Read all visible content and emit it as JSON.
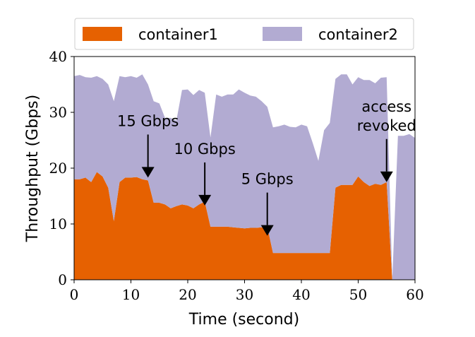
{
  "chart_data": {
    "type": "area",
    "stacked": true,
    "xlabel": "Time (second)",
    "ylabel": "Throughput (Gbps)",
    "xlim": [
      0,
      60
    ],
    "ylim": [
      0,
      40
    ],
    "xticks": [
      0,
      10,
      20,
      30,
      40,
      50,
      60
    ],
    "yticks": [
      0,
      10,
      20,
      30,
      40
    ],
    "grid": false,
    "legend_position": "top",
    "x": [
      0,
      1,
      2,
      3,
      4,
      5,
      6,
      7,
      8,
      9,
      10,
      11,
      12,
      13,
      14,
      15,
      16,
      17,
      18,
      19,
      20,
      21,
      22,
      23,
      24,
      25,
      26,
      27,
      28,
      29,
      30,
      31,
      32,
      33,
      34,
      35,
      36,
      37,
      38,
      39,
      40,
      41,
      42,
      43,
      44,
      45,
      46,
      47,
      48,
      49,
      50,
      51,
      52,
      53,
      54,
      55,
      56,
      57,
      58,
      59,
      60
    ],
    "series": [
      {
        "name": "container1",
        "color": "#e66101",
        "values": [
          18,
          18,
          18.3,
          17.5,
          19.3,
          18.5,
          16.5,
          10.5,
          17.5,
          18.3,
          18.3,
          18.4,
          18,
          17.8,
          13.8,
          13.8,
          13.5,
          12.8,
          13.2,
          13.5,
          13.3,
          12.8,
          13.5,
          14,
          9.5,
          9.5,
          9.5,
          9.5,
          9.4,
          9.3,
          9.2,
          9.3,
          9.3,
          9.4,
          9.5,
          4.8,
          4.8,
          4.8,
          4.8,
          4.8,
          4.8,
          4.8,
          4.8,
          4.8,
          4.8,
          4.8,
          16.5,
          17,
          17,
          17,
          18.5,
          17.5,
          16.8,
          17.2,
          17,
          17.5,
          0,
          0,
          0,
          0,
          0
        ]
      },
      {
        "name": "container2",
        "color": "#b2abd2",
        "values": [
          18.5,
          18.7,
          18,
          18.7,
          17.2,
          17.5,
          18.5,
          21.5,
          19,
          18,
          18.2,
          17.8,
          18.8,
          17.2,
          18.2,
          17.8,
          15.5,
          16.2,
          15.3,
          20.5,
          20.8,
          20.3,
          20.5,
          19.5,
          16,
          23.7,
          23.3,
          23.7,
          23.8,
          24.8,
          24.3,
          23.7,
          23.5,
          22.6,
          21.5,
          22.5,
          22.7,
          23,
          22.6,
          22.5,
          23,
          22.7,
          19.7,
          16.5,
          22,
          23.3,
          19.5,
          19.8,
          19.8,
          18,
          17.8,
          18.3,
          19,
          18,
          19.2,
          18.8,
          0,
          25.8,
          25.8,
          26.1,
          25.4
        ]
      }
    ],
    "annotations": [
      {
        "text": "15 Gbps",
        "x": 13,
        "y": 18.3
      },
      {
        "text": "10 Gbps",
        "x": 23,
        "y": 13.3
      },
      {
        "text": "5 Gbps",
        "x": 34,
        "y": 7.9
      },
      {
        "lines": [
          "access",
          "revoked"
        ],
        "x": 55,
        "y": 17.5
      }
    ]
  }
}
